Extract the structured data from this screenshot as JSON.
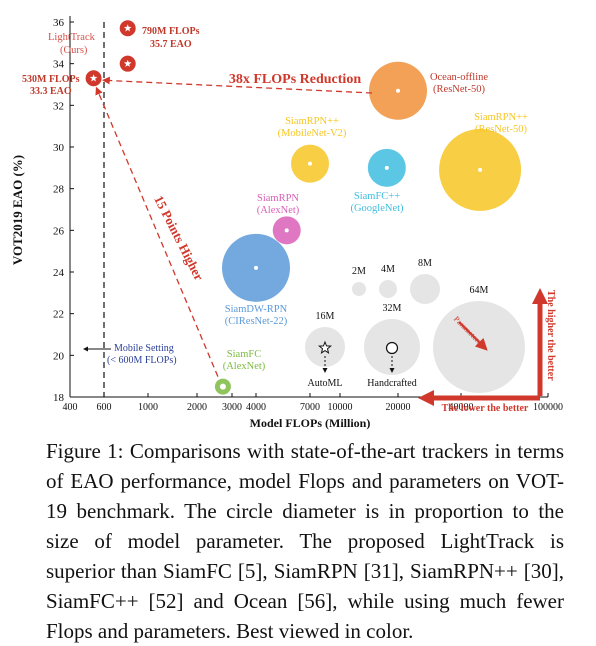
{
  "chart_data": {
    "type": "scatter",
    "title": "",
    "xlabel": "Model FLOPs (Million)",
    "ylabel": "VOT2019   EAO (%)",
    "x_ticks": [
      "400",
      "600",
      "1000",
      "2000",
      "3000",
      "4000",
      "7000",
      "10000",
      "20000",
      "40000",
      "100000"
    ],
    "y_ticks": [
      "18",
      "20",
      "22",
      "24",
      "26",
      "28",
      "30",
      "32",
      "34",
      "36"
    ],
    "ylim": [
      18,
      36
    ],
    "grid": false,
    "trackers": [
      {
        "name": "SiamFC",
        "sublabel": "(AlexNet)",
        "flops": 2700,
        "eao": 18.5,
        "color": "#7dbb42"
      },
      {
        "name": "SiamRPN",
        "sublabel": "(AlexNet)",
        "flops": 5500,
        "eao": 26.0,
        "color": "#d95fb8"
      },
      {
        "name": "SiamDW-RPN",
        "sublabel": "(CIResNet-22)",
        "flops": 4000,
        "eao": 24.2,
        "color": "#5b9ad8"
      },
      {
        "name": "SiamRPN++",
        "sublabel": "(MobileNet-V2)",
        "flops": 7000,
        "eao": 29.2,
        "color": "#f7c623"
      },
      {
        "name": "SiamFC++",
        "sublabel": "(GoogleNet)",
        "flops": 17500,
        "eao": 29.0,
        "color": "#3fbde0"
      },
      {
        "name": "SiamRPN++",
        "sublabel": "(ResNet-50)",
        "flops": 48900,
        "eao": 28.9,
        "color": "#f7c623"
      },
      {
        "name": "Ocean-offline",
        "sublabel": "(ResNet-50)",
        "flops": 20000,
        "eao": 32.7,
        "color": "#f0903a"
      }
    ],
    "lighttrack": [
      {
        "label": "790M FLOPs",
        "eao_label": "35.7 EAO",
        "flops": 790,
        "eao": 35.7
      },
      {
        "label": "",
        "eao_label": "",
        "flops": 790,
        "eao": 34.0
      },
      {
        "label": "530M FLOPs",
        "eao_label": "33.3 EAO",
        "flops": 530,
        "eao": 33.3
      }
    ],
    "lighttrack_name": "LightTrack",
    "lighttrack_ours": "(Ours)",
    "annotations": {
      "flops_reduction": "38x FLOPs Reduction",
      "points_higher": "15 Points Higher",
      "mobile_setting_1": "Mobile Setting",
      "mobile_setting_2": "(< 600M FLOPs)",
      "higher_better": "The higher the better",
      "lower_better": "The lower the better",
      "parameters": "Parameters"
    },
    "param_legend": [
      {
        "label": "2M"
      },
      {
        "label": "4M"
      },
      {
        "label": "8M"
      },
      {
        "label": "16M"
      },
      {
        "label": "32M"
      },
      {
        "label": "64M"
      }
    ],
    "legend_markers": {
      "automl": "AutoML",
      "handcrafted": "Handcrafted"
    }
  },
  "caption": "Figure 1: Comparisons with state-of-the-art trackers in terms of EAO performance, model Flops and parameters on VOT-19 benchmark. The circle diameter is in proportion to the size of model parameter. The proposed LightTrack is superior than SiamFC [5], SiamRPN [31], SiamRPN++ [30], SiamFC++ [52] and Ocean [56], while using much fewer Flops and parameters. Best viewed in color.",
  "colors": {
    "accent_red": "#d0382b",
    "axis": "#111111",
    "label_red": "#c0392b"
  }
}
